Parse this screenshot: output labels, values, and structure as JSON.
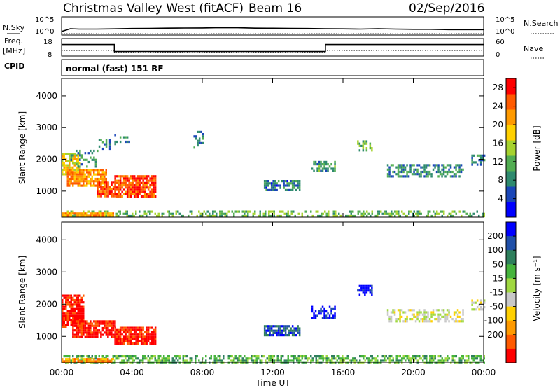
{
  "header": {
    "station": "Christmas Valley West (fitACF)",
    "beam": "Beam 16",
    "date": "02/Sep/2016"
  },
  "noise_panel": {
    "left_label": "N.Sky",
    "left_ticks": [
      "10^5",
      "10^0"
    ],
    "right_ticks": [
      "10^5",
      "10^0"
    ],
    "right_label": "N.Search"
  },
  "freq_panel": {
    "left_label_1": "Freq.",
    "left_label_2": "[MHz]",
    "left_ticks": [
      "18",
      "8"
    ],
    "right_ticks": [
      "60",
      "0"
    ],
    "right_label": "Nave"
  },
  "cpid": {
    "label": "CPID",
    "value": "normal (fast) 151 RF"
  },
  "chart_data": [
    {
      "type": "line",
      "panel": "Noise",
      "series": [
        {
          "name": "N.Sky",
          "x_hours": [
            0.0,
            0.5,
            1.0,
            2.0,
            3.0,
            4.0,
            5.0,
            6.0,
            7.0,
            8.0,
            9.0,
            10.0,
            11.0,
            12.0,
            13.0,
            14.0,
            15.0,
            16.0,
            17.0,
            18.0,
            19.0,
            20.0,
            21.0,
            22.0,
            23.0,
            24.0
          ],
          "values": [
            5,
            40,
            30,
            30,
            35,
            45,
            50,
            60,
            65,
            70,
            90,
            80,
            60,
            55,
            50,
            45,
            40,
            35,
            30,
            40,
            30,
            25,
            25,
            20,
            20,
            20
          ]
        },
        {
          "name": "N.Search",
          "x_hours": [
            0,
            24
          ],
          "values": [
            1,
            1
          ]
        }
      ],
      "ylim_log10": [
        0,
        5
      ]
    },
    {
      "type": "line",
      "panel": "Freq./Nave",
      "series": [
        {
          "name": "Freq.",
          "x_hours": [
            0,
            3,
            3,
            15,
            15,
            24
          ],
          "values": [
            15,
            15,
            10.5,
            10.5,
            15,
            15
          ]
        },
        {
          "name": "Nave",
          "x_hours": [
            0,
            3,
            3,
            15,
            15,
            24
          ],
          "values": [
            19,
            19,
            11,
            11,
            19,
            19
          ]
        }
      ],
      "ylim_left": [
        8,
        18
      ],
      "ylim_right": [
        0,
        60
      ]
    },
    {
      "type": "heatmap",
      "panel": "Power",
      "xlabel": "Time UT",
      "ylabel": "Slant Range [km]",
      "x_ticks": [
        "00:00",
        "04:00",
        "08:00",
        "12:00",
        "16:00",
        "20:00",
        "00:00"
      ],
      "xlim_hours": [
        0,
        24
      ],
      "y_ticks": [
        1000,
        2000,
        3000,
        4000
      ],
      "ylim": [
        180,
        4550
      ],
      "colorbar": {
        "label": "Power [dB]",
        "ticks": [
          4,
          8,
          12,
          16,
          20,
          24,
          28
        ],
        "range": [
          0,
          30
        ],
        "colors": [
          "#0000ff",
          "#1a46b8",
          "#2e8a6e",
          "#52ad52",
          "#a6d22e",
          "#ffd000",
          "#ff9a00",
          "#ff5a00",
          "#ff0000"
        ]
      },
      "regions": [
        {
          "t0": 0.0,
          "t1": 24.0,
          "r0": 200,
          "r1": 390,
          "level": 12,
          "density": 0.45
        },
        {
          "t0": 0.0,
          "t1": 2.9,
          "r0": 230,
          "r1": 330,
          "level": 22,
          "density": 0.9
        },
        {
          "t0": 0.0,
          "t1": 1.0,
          "r0": 1500,
          "r1": 2200,
          "level": 18,
          "density": 0.8
        },
        {
          "t0": 0.3,
          "t1": 2.5,
          "r0": 1150,
          "r1": 1700,
          "level": 23,
          "density": 0.8
        },
        {
          "t0": 2.0,
          "t1": 3.0,
          "r0": 850,
          "r1": 1300,
          "level": 27,
          "density": 0.85
        },
        {
          "t0": 3.0,
          "t1": 5.3,
          "r0": 800,
          "r1": 1500,
          "level": 27,
          "density": 0.85
        },
        {
          "t0": 0.5,
          "t1": 2.0,
          "r0": 1800,
          "r1": 2300,
          "level": 8,
          "density": 0.3
        },
        {
          "t0": 2.0,
          "t1": 2.7,
          "r0": 2300,
          "r1": 2650,
          "level": 6,
          "density": 0.35
        },
        {
          "t0": 3.0,
          "t1": 3.8,
          "r0": 2500,
          "r1": 2800,
          "level": 6,
          "density": 0.3
        },
        {
          "t0": 7.5,
          "t1": 8.0,
          "r0": 2400,
          "r1": 2900,
          "level": 6,
          "density": 0.4
        },
        {
          "t0": 11.5,
          "t1": 13.5,
          "r0": 1050,
          "r1": 1350,
          "level": 6,
          "density": 0.75
        },
        {
          "t0": 14.2,
          "t1": 15.5,
          "r0": 1600,
          "r1": 1950,
          "level": 9,
          "density": 0.55
        },
        {
          "t0": 16.8,
          "t1": 17.6,
          "r0": 2300,
          "r1": 2600,
          "level": 12,
          "density": 0.5
        },
        {
          "t0": 18.5,
          "t1": 22.8,
          "r0": 1450,
          "r1": 1850,
          "level": 8,
          "density": 0.55
        },
        {
          "t0": 23.3,
          "t1": 24.0,
          "r0": 1850,
          "r1": 2150,
          "level": 6,
          "density": 0.5
        }
      ]
    },
    {
      "type": "heatmap",
      "panel": "Velocity",
      "xlabel": "Time UT",
      "ylabel": "Slant Range [km]",
      "x_ticks": [
        "00:00",
        "04:00",
        "08:00",
        "12:00",
        "16:00",
        "20:00",
        "00:00"
      ],
      "xlim_hours": [
        0,
        24
      ],
      "y_ticks": [
        1000,
        2000,
        3000,
        4000
      ],
      "ylim": [
        180,
        4550
      ],
      "colorbar": {
        "label": "Velocity [m s⁻¹]",
        "ticks": [
          200,
          100,
          50,
          15,
          -15,
          -50,
          -100,
          -200
        ],
        "colors": [
          "#0000ff",
          "#1f4fa8",
          "#2e7f5c",
          "#46b43c",
          "#a0d840",
          "#c8c8c8",
          "#ffd000",
          "#ff9a00",
          "#ff5a00",
          "#ff0000"
        ]
      },
      "regions": [
        {
          "t0": 0.0,
          "t1": 24.0,
          "r0": 200,
          "r1": 420,
          "level": 3,
          "density": 0.6
        },
        {
          "t0": 0.0,
          "t1": 2.9,
          "r0": 240,
          "r1": 330,
          "level": 7,
          "density": 0.8
        },
        {
          "t0": 0.0,
          "t1": 1.2,
          "r0": 1300,
          "r1": 2300,
          "level": 9,
          "density": 0.85
        },
        {
          "t0": 0.6,
          "t1": 3.0,
          "r0": 950,
          "r1": 1500,
          "level": 9,
          "density": 0.85
        },
        {
          "t0": 3.0,
          "t1": 5.3,
          "r0": 800,
          "r1": 1300,
          "level": 9,
          "density": 0.85
        },
        {
          "t0": 11.5,
          "t1": 13.5,
          "r0": 1050,
          "r1": 1350,
          "level": 1,
          "density": 0.75
        },
        {
          "t0": 14.2,
          "t1": 15.5,
          "r0": 1600,
          "r1": 1950,
          "level": 0,
          "density": 0.5
        },
        {
          "t0": 16.8,
          "t1": 17.6,
          "r0": 2300,
          "r1": 2600,
          "level": 0,
          "density": 0.5
        },
        {
          "t0": 18.5,
          "t1": 22.8,
          "r0": 1450,
          "r1": 1850,
          "level": 5,
          "density": 0.5
        },
        {
          "t0": 23.3,
          "t1": 24.0,
          "r0": 1850,
          "r1": 2150,
          "level": 5,
          "density": 0.45
        }
      ]
    }
  ]
}
